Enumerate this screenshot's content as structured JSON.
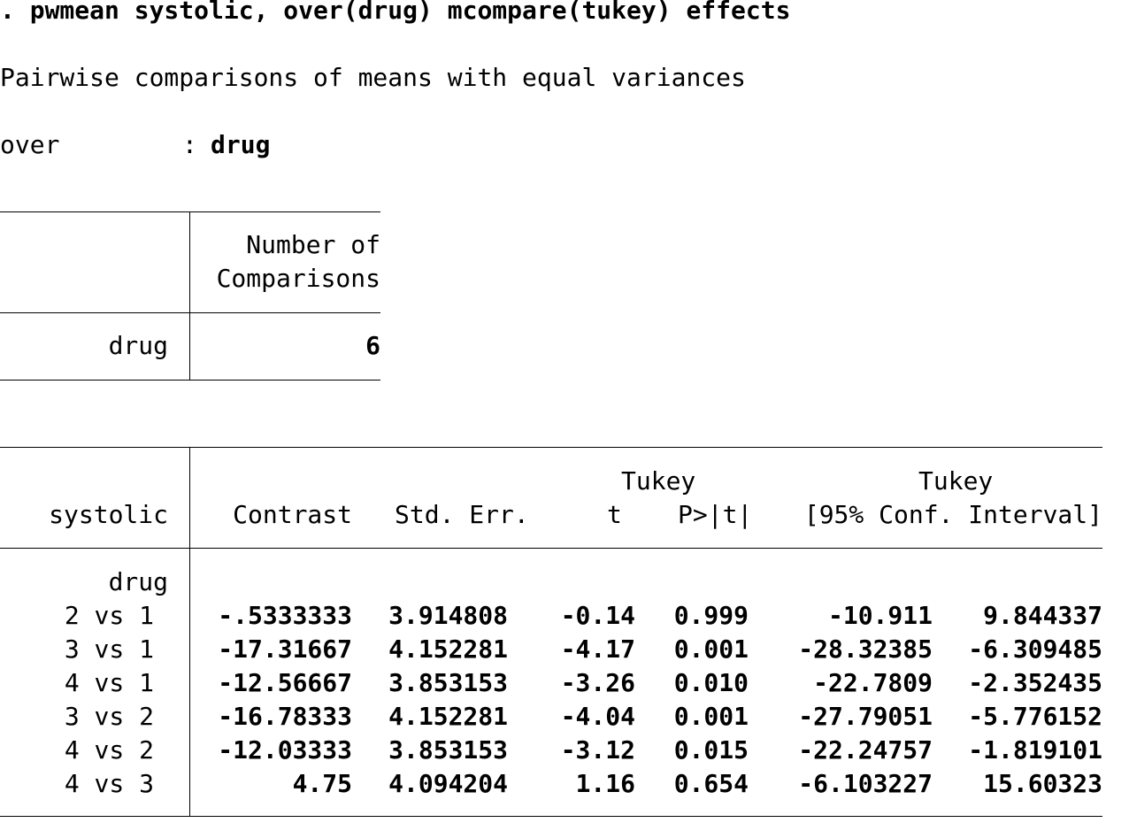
{
  "command": ". pwmean systolic, over(drug) mcompare(tukey) effects",
  "subtitle": "Pairwise comparisons of means with equal variances",
  "over_label": "over",
  "over_sep": ":",
  "over_value": "drug",
  "comparisons_table": {
    "header_line1": "Number of",
    "header_line2": "Comparisons",
    "row_label": "drug",
    "row_value": "6"
  },
  "results_table": {
    "depvar": "systolic",
    "tukey_label_1": "Tukey",
    "tukey_label_2": "Tukey",
    "col_contrast": "Contrast",
    "col_stderr": "Std. Err.",
    "col_t": "t",
    "col_p": "P>|t|",
    "col_ci": "[95% Conf. Interval]",
    "group_label": "drug",
    "rows": [
      {
        "label": "2 vs 1",
        "contrast": "-.5333333",
        "stderr": "3.914808",
        "t": "-0.14",
        "p": "0.999",
        "ci_low": "-10.911",
        "ci_high": "9.844337"
      },
      {
        "label": "3 vs 1",
        "contrast": "-17.31667",
        "stderr": "4.152281",
        "t": "-4.17",
        "p": "0.001",
        "ci_low": "-28.32385",
        "ci_high": "-6.309485"
      },
      {
        "label": "4 vs 1",
        "contrast": "-12.56667",
        "stderr": "3.853153",
        "t": "-3.26",
        "p": "0.010",
        "ci_low": "-22.7809",
        "ci_high": "-2.352435"
      },
      {
        "label": "3 vs 2",
        "contrast": "-16.78333",
        "stderr": "4.152281",
        "t": "-4.04",
        "p": "0.001",
        "ci_low": "-27.79051",
        "ci_high": "-5.776152"
      },
      {
        "label": "4 vs 2",
        "contrast": "-12.03333",
        "stderr": "3.853153",
        "t": "-3.12",
        "p": "0.015",
        "ci_low": "-22.24757",
        "ci_high": "-1.819101"
      },
      {
        "label": "4 vs 3",
        "contrast": "4.75",
        "stderr": "4.094204",
        "t": "1.16",
        "p": "0.654",
        "ci_low": "-6.103227",
        "ci_high": "15.60323"
      }
    ]
  }
}
